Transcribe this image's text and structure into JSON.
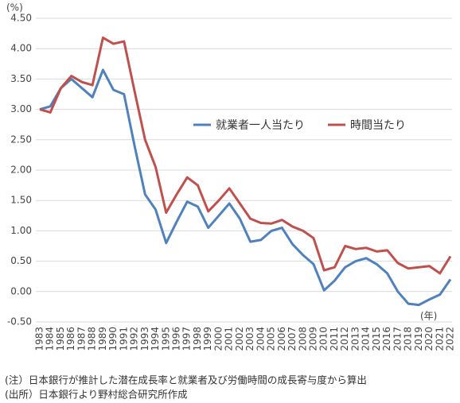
{
  "chart_data": {
    "type": "line",
    "y_unit": "(%)",
    "x_unit": "(年)",
    "categories": [
      "1983",
      "1984",
      "1985",
      "1986",
      "1987",
      "1988",
      "1989",
      "1990",
      "1991",
      "1992",
      "1993",
      "1994",
      "1995",
      "1996",
      "1997",
      "1998",
      "1999",
      "2000",
      "2001",
      "2002",
      "2003",
      "2004",
      "2005",
      "2006",
      "2007",
      "2008",
      "2009",
      "2010",
      "2011",
      "2012",
      "2013",
      "2014",
      "2015",
      "2016",
      "2017",
      "2018",
      "2019",
      "2020",
      "2021",
      "2022"
    ],
    "series": [
      {
        "name": "就業者一人当たり",
        "color": "#4f81bd",
        "values": [
          3.0,
          3.05,
          3.35,
          3.5,
          3.35,
          3.2,
          3.65,
          3.32,
          3.25,
          2.4,
          1.6,
          1.35,
          0.8,
          1.15,
          1.48,
          1.4,
          1.05,
          1.25,
          1.45,
          1.2,
          0.82,
          0.85,
          1.0,
          1.05,
          0.78,
          0.6,
          0.45,
          0.02,
          0.18,
          0.4,
          0.5,
          0.55,
          0.45,
          0.3,
          0.0,
          -0.2,
          -0.22,
          -0.13,
          -0.05,
          0.2
        ]
      },
      {
        "name": "時間当たり",
        "color": "#c0504d",
        "values": [
          3.0,
          2.95,
          3.35,
          3.55,
          3.45,
          3.4,
          4.18,
          4.08,
          4.12,
          3.3,
          2.5,
          2.05,
          1.3,
          1.6,
          1.88,
          1.75,
          1.32,
          1.5,
          1.7,
          1.45,
          1.2,
          1.13,
          1.12,
          1.18,
          1.07,
          1.0,
          0.88,
          0.35,
          0.4,
          0.75,
          0.7,
          0.72,
          0.66,
          0.68,
          0.47,
          0.38,
          0.4,
          0.42,
          0.3,
          0.58
        ]
      }
    ],
    "ylim": [
      -0.5,
      4.5
    ],
    "yticks": [
      {
        "value": -0.5,
        "label": "-0.50"
      },
      {
        "value": 0,
        "label": "0.00"
      },
      {
        "value": 0.5,
        "label": "0.50"
      },
      {
        "value": 1,
        "label": "1.00"
      },
      {
        "value": 1.5,
        "label": "1.50"
      },
      {
        "value": 2,
        "label": "2.00"
      },
      {
        "value": 2.5,
        "label": "2.50"
      },
      {
        "value": 3,
        "label": "3.00"
      },
      {
        "value": 3.5,
        "label": "3.50"
      },
      {
        "value": 4,
        "label": "4.00"
      },
      {
        "value": 4.5,
        "label": "4.50"
      }
    ],
    "grid": true,
    "notes": [
      "(注）日本銀行が推計した潜在成長率と就業者及び労働時間の成長寄与度から算出",
      "(出所）日本銀行より野村総合研究所作成"
    ]
  }
}
